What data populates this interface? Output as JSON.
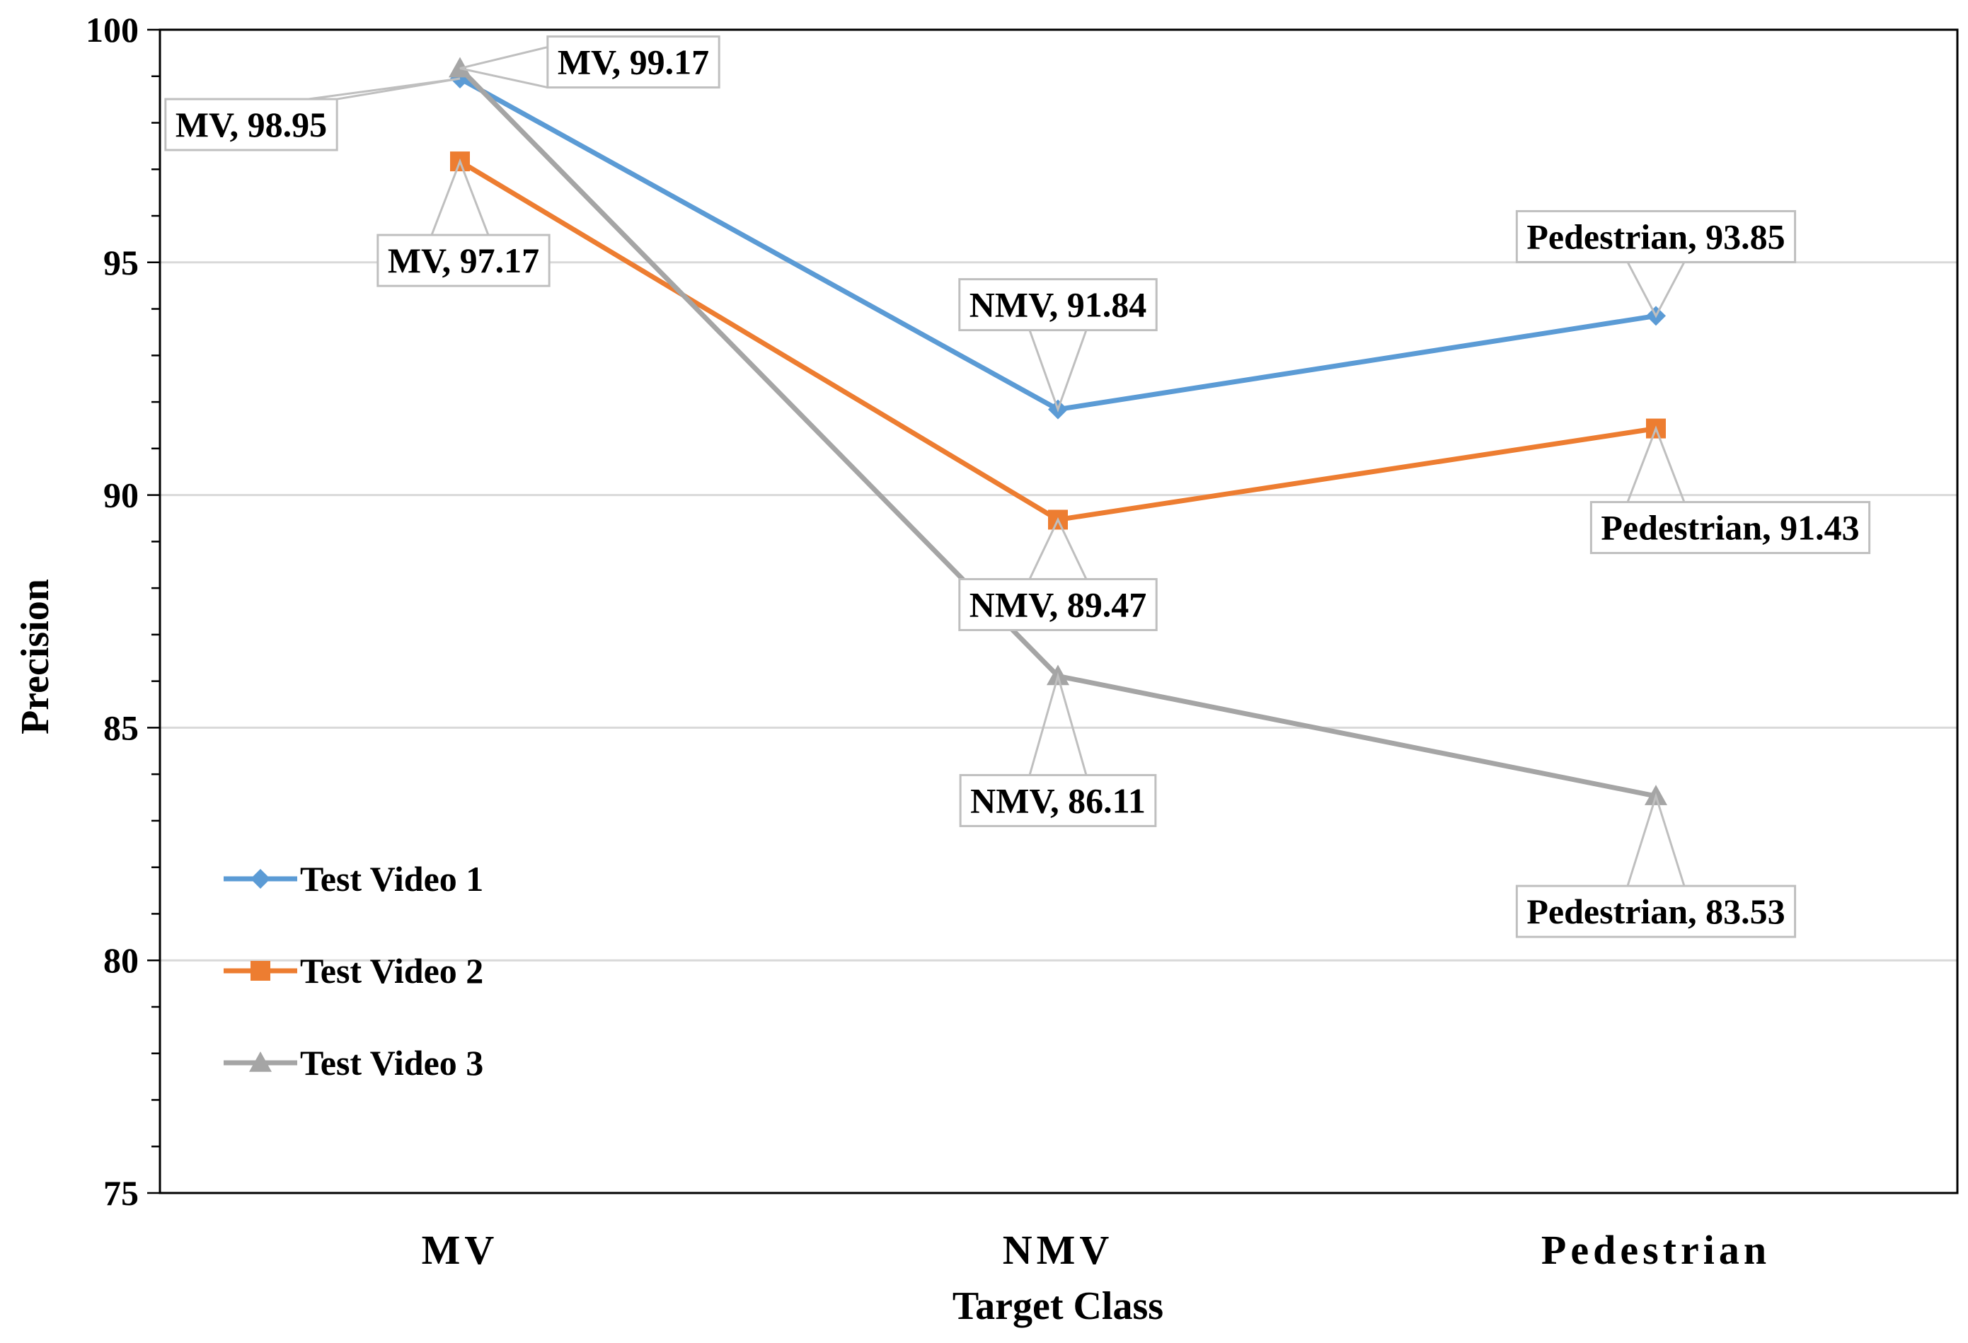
{
  "chart_data": {
    "type": "line",
    "title": "",
    "xlabel": "Target Class",
    "ylabel": "Precision",
    "categories": [
      "MV",
      "NMV",
      "Pedestrian"
    ],
    "ylim": [
      75,
      100
    ],
    "yticks": [
      75,
      80,
      85,
      90,
      95,
      100
    ],
    "grid": true,
    "legend_position": "bottom-left",
    "series": [
      {
        "name": "Test Video 1",
        "color": "#5B9BD5",
        "marker": "diamond",
        "values": [
          98.95,
          91.84,
          93.85
        ],
        "labels": [
          "MV, 98.95",
          "NMV, 91.84",
          "Pedestrian, 93.85"
        ]
      },
      {
        "name": "Test Video 2",
        "color": "#ED7D31",
        "marker": "square",
        "values": [
          97.17,
          89.47,
          91.43
        ],
        "labels": [
          "MV, 97.17",
          "NMV, 89.47",
          "Pedestrian, 91.43"
        ]
      },
      {
        "name": "Test Video 3",
        "color": "#A5A5A5",
        "marker": "triangle",
        "values": [
          99.17,
          86.11,
          83.53
        ],
        "labels": [
          "MV, 99.17",
          "NMV, 86.11",
          "Pedestrian, 83.53"
        ]
      }
    ]
  }
}
